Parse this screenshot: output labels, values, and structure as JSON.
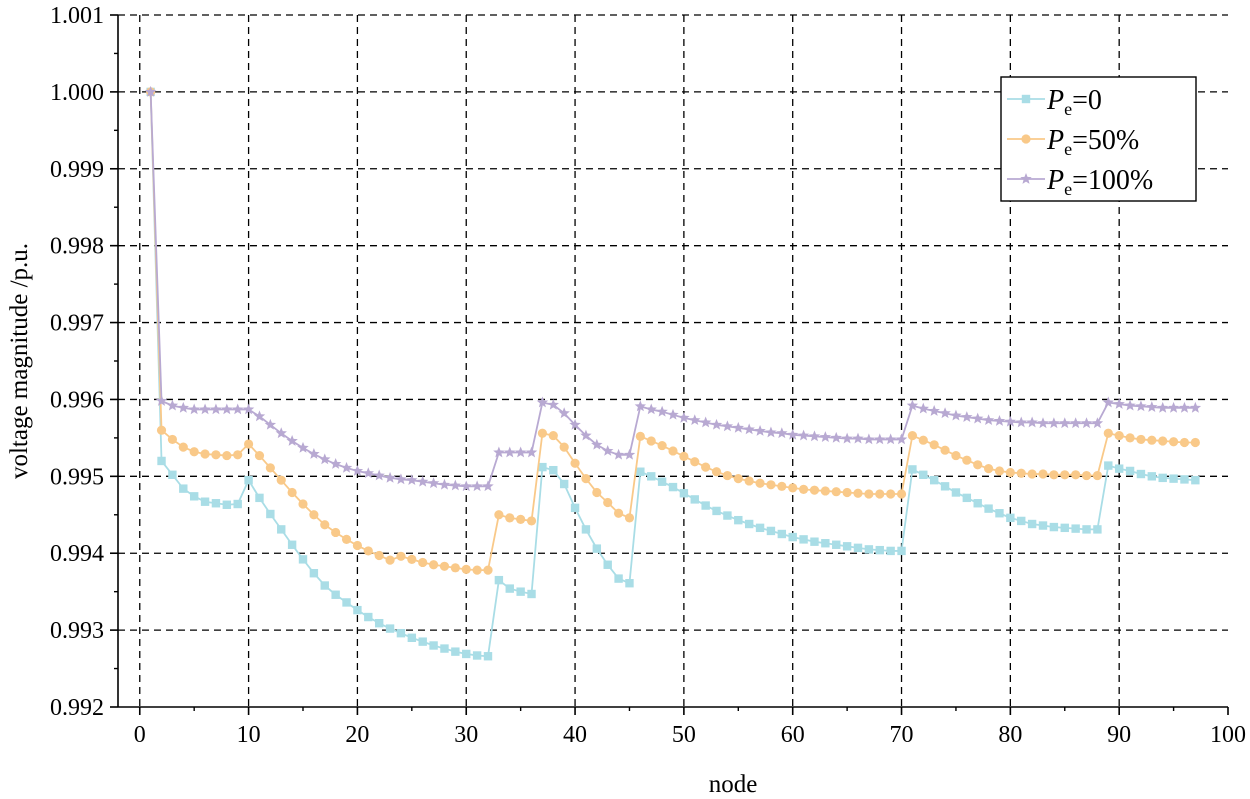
{
  "chart_data": {
    "type": "line",
    "title": "",
    "xlabel": "node",
    "ylabel": "voltage magnitude /p.u.",
    "xlim": [
      -2,
      100
    ],
    "ylim": [
      0.992,
      1.001
    ],
    "xticks": [
      0,
      10,
      20,
      30,
      40,
      50,
      60,
      70,
      80,
      90,
      100
    ],
    "yticks": [
      0.992,
      0.993,
      0.994,
      0.995,
      0.996,
      0.997,
      0.998,
      0.999,
      1.0,
      1.001
    ],
    "xtick_labels": [
      "0",
      "10",
      "20",
      "30",
      "40",
      "50",
      "60",
      "70",
      "80",
      "90",
      "100"
    ],
    "ytick_labels": [
      "0.992",
      "0.993",
      "0.994",
      "0.995",
      "0.996",
      "0.997",
      "0.998",
      "0.999",
      "1.000",
      "1.001"
    ],
    "grid": true,
    "legend_position": "top-right",
    "x": [
      1,
      2,
      3,
      4,
      5,
      6,
      7,
      8,
      9,
      10,
      11,
      12,
      13,
      14,
      15,
      16,
      17,
      18,
      19,
      20,
      21,
      22,
      23,
      24,
      25,
      26,
      27,
      28,
      29,
      30,
      31,
      32,
      33,
      34,
      35,
      36,
      37,
      38,
      39,
      40,
      41,
      42,
      43,
      44,
      45,
      46,
      47,
      48,
      49,
      50,
      51,
      52,
      53,
      54,
      55,
      56,
      57,
      58,
      59,
      60,
      61,
      62,
      63,
      64,
      65,
      66,
      67,
      68,
      69,
      70,
      71,
      72,
      73,
      74,
      75,
      76,
      77,
      78,
      79,
      80,
      81,
      82,
      83,
      84,
      85,
      86,
      87,
      88,
      89,
      90,
      91,
      92,
      93,
      94,
      95,
      96,
      97
    ],
    "series": [
      {
        "name": "Pe=0",
        "legend_main": "P",
        "legend_sub": "e",
        "legend_rest": "=0",
        "color": "#a9dde6",
        "marker": "square",
        "values": [
          1.0,
          0.9952,
          0.99502,
          0.99484,
          0.99474,
          0.99467,
          0.99465,
          0.99463,
          0.99464,
          0.99495,
          0.99472,
          0.99451,
          0.99431,
          0.99411,
          0.99392,
          0.99374,
          0.99358,
          0.99346,
          0.99336,
          0.99326,
          0.99317,
          0.99309,
          0.99302,
          0.99296,
          0.9929,
          0.99285,
          0.9928,
          0.99276,
          0.99272,
          0.99269,
          0.99267,
          0.99266,
          0.99365,
          0.99354,
          0.9935,
          0.99347,
          0.99512,
          0.99508,
          0.9949,
          0.99459,
          0.99431,
          0.99406,
          0.99385,
          0.99367,
          0.99361,
          0.99506,
          0.995,
          0.99493,
          0.99486,
          0.99478,
          0.9947,
          0.99462,
          0.99455,
          0.99449,
          0.99443,
          0.99438,
          0.99433,
          0.99429,
          0.99425,
          0.99421,
          0.99418,
          0.99415,
          0.99413,
          0.99411,
          0.99409,
          0.99407,
          0.99405,
          0.99404,
          0.99403,
          0.99403,
          0.99509,
          0.99502,
          0.99495,
          0.99487,
          0.99479,
          0.99472,
          0.99465,
          0.99458,
          0.99452,
          0.99446,
          0.99442,
          0.99438,
          0.99436,
          0.99434,
          0.99433,
          0.99432,
          0.99431,
          0.99431,
          0.99514,
          0.9951,
          0.99507,
          0.99503,
          0.995,
          0.99498,
          0.99497,
          0.99496,
          0.99495
        ]
      },
      {
        "name": "Pe=50%",
        "legend_main": "P",
        "legend_sub": "e",
        "legend_rest": "=50%",
        "color": "#f9c989",
        "marker": "circle",
        "values": [
          1.0,
          0.9956,
          0.99548,
          0.99538,
          0.99532,
          0.99529,
          0.99528,
          0.99527,
          0.99528,
          0.99542,
          0.99527,
          0.99511,
          0.99495,
          0.99479,
          0.99464,
          0.9945,
          0.99437,
          0.99427,
          0.99418,
          0.9941,
          0.99403,
          0.99397,
          0.99391,
          0.99396,
          0.99392,
          0.99388,
          0.99385,
          0.99383,
          0.99381,
          0.99379,
          0.99378,
          0.99378,
          0.9945,
          0.99446,
          0.99444,
          0.99442,
          0.99556,
          0.99553,
          0.99538,
          0.99517,
          0.99497,
          0.99479,
          0.99466,
          0.99452,
          0.99446,
          0.99552,
          0.99546,
          0.9954,
          0.99533,
          0.99526,
          0.99519,
          0.99512,
          0.99506,
          0.99501,
          0.99497,
          0.99494,
          0.99491,
          0.99489,
          0.99487,
          0.99485,
          0.99483,
          0.99482,
          0.99481,
          0.9948,
          0.99479,
          0.99478,
          0.99477,
          0.99477,
          0.99477,
          0.99477,
          0.99553,
          0.99547,
          0.99541,
          0.99534,
          0.99527,
          0.99521,
          0.99515,
          0.9951,
          0.99507,
          0.99505,
          0.99504,
          0.99503,
          0.99503,
          0.99502,
          0.99502,
          0.99502,
          0.99501,
          0.99501,
          0.99556,
          0.99553,
          0.9955,
          0.99548,
          0.99547,
          0.99546,
          0.99545,
          0.99544,
          0.99544
        ]
      },
      {
        "name": "Pe=100%",
        "legend_main": "P",
        "legend_sub": "e",
        "legend_rest": "=100%",
        "color": "#b8a9d2",
        "marker": "star",
        "values": [
          1.0,
          0.99598,
          0.99592,
          0.99589,
          0.99587,
          0.99587,
          0.99587,
          0.99587,
          0.99587,
          0.99587,
          0.99578,
          0.99567,
          0.99556,
          0.99546,
          0.99537,
          0.99529,
          0.99522,
          0.99516,
          0.99511,
          0.99507,
          0.99504,
          0.99501,
          0.99498,
          0.99496,
          0.99495,
          0.99493,
          0.99491,
          0.99489,
          0.99488,
          0.99487,
          0.99487,
          0.99487,
          0.99531,
          0.99531,
          0.99531,
          0.99531,
          0.99596,
          0.99593,
          0.99582,
          0.99567,
          0.99553,
          0.99541,
          0.99533,
          0.99528,
          0.99528,
          0.99591,
          0.99587,
          0.99584,
          0.9958,
          0.99576,
          0.99573,
          0.9957,
          0.99567,
          0.99565,
          0.99563,
          0.99561,
          0.99559,
          0.99557,
          0.99556,
          0.99554,
          0.99553,
          0.99552,
          0.99551,
          0.9955,
          0.99549,
          0.99549,
          0.99548,
          0.99548,
          0.99548,
          0.99548,
          0.99592,
          0.99588,
          0.99585,
          0.99582,
          0.99579,
          0.99577,
          0.99575,
          0.99573,
          0.99572,
          0.99571,
          0.9957,
          0.9957,
          0.99569,
          0.99569,
          0.99569,
          0.99569,
          0.99569,
          0.99569,
          0.99596,
          0.99594,
          0.99592,
          0.99591,
          0.9959,
          0.99589,
          0.99589,
          0.99589,
          0.99589
        ]
      }
    ]
  }
}
